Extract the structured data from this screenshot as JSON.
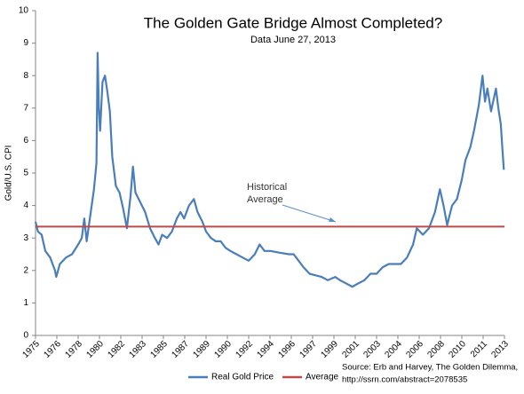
{
  "chart_data": {
    "type": "line",
    "title": "The Golden Gate Bridge Almost Completed?",
    "subtitle": "Data June 27, 2013",
    "y_label": "Gold/U.S. CPI",
    "annotation": [
      "Historical",
      "Average"
    ],
    "source": [
      "Source: Erb and Harvey,  The Golden Dilemma,",
      "http://ssrn.com/abstract=2078535"
    ],
    "xlim": [
      1975,
      2013.5
    ],
    "xticks": [
      {
        "value": 1975,
        "label": "1975"
      },
      {
        "value": 1976.75,
        "label": "1976"
      },
      {
        "value": 1978.5,
        "label": "1978"
      },
      {
        "value": 1980.25,
        "label": "1980"
      },
      {
        "value": 1982,
        "label": "1982"
      },
      {
        "value": 1983.75,
        "label": "1983"
      },
      {
        "value": 1985.5,
        "label": "1985"
      },
      {
        "value": 1987.25,
        "label": "1987"
      },
      {
        "value": 1989,
        "label": "1989"
      },
      {
        "value": 1990.75,
        "label": "1990"
      },
      {
        "value": 1992.5,
        "label": "1992"
      },
      {
        "value": 1994.25,
        "label": "1994"
      },
      {
        "value": 1996,
        "label": "1996"
      },
      {
        "value": 1997.75,
        "label": "1997"
      },
      {
        "value": 1999.5,
        "label": "1999"
      },
      {
        "value": 2001.25,
        "label": "2001"
      },
      {
        "value": 2003,
        "label": "2003"
      },
      {
        "value": 2004.75,
        "label": "2004"
      },
      {
        "value": 2006.5,
        "label": "2006"
      },
      {
        "value": 2008.25,
        "label": "2008"
      },
      {
        "value": 2010,
        "label": "2010"
      },
      {
        "value": 2011.75,
        "label": "2011"
      },
      {
        "value": 2013.5,
        "label": "2013"
      }
    ],
    "ylim": [
      0,
      10
    ],
    "yticks": [
      0,
      1,
      2,
      3,
      4,
      5,
      6,
      7,
      8,
      9,
      10
    ],
    "grid": false,
    "legend": "bottom",
    "series": [
      {
        "name": "Real Gold Price",
        "color": "#4a7ebb",
        "x": [
          1975.0,
          1975.2,
          1975.5,
          1975.8,
          1976.2,
          1976.6,
          1976.7,
          1977.0,
          1977.5,
          1978.0,
          1978.5,
          1978.8,
          1979.0,
          1979.2,
          1979.5,
          1979.8,
          1980.0,
          1980.1,
          1980.2,
          1980.3,
          1980.5,
          1980.7,
          1980.9,
          1981.1,
          1981.3,
          1981.6,
          1981.9,
          1982.2,
          1982.5,
          1982.8,
          1983.0,
          1983.2,
          1983.6,
          1984.0,
          1984.4,
          1984.8,
          1985.1,
          1985.4,
          1985.8,
          1986.2,
          1986.6,
          1986.9,
          1987.2,
          1987.6,
          1988.0,
          1988.3,
          1988.7,
          1989.0,
          1989.4,
          1989.8,
          1990.2,
          1990.6,
          1991.0,
          1991.5,
          1992.0,
          1992.5,
          1993.0,
          1993.4,
          1993.8,
          1994.3,
          1995.0,
          1995.8,
          1996.2,
          1996.6,
          1997.0,
          1997.5,
          1998.0,
          1998.5,
          1999.0,
          1999.6,
          2000.0,
          2000.5,
          2001.0,
          2001.5,
          2002.0,
          2002.5,
          2003.0,
          2003.5,
          2004.0,
          2004.5,
          2005.0,
          2005.5,
          2006.0,
          2006.3,
          2006.8,
          2007.3,
          2007.8,
          2008.2,
          2008.5,
          2008.8,
          2009.2,
          2009.6,
          2010.0,
          2010.3,
          2010.7,
          2011.0,
          2011.4,
          2011.7,
          2011.9,
          2012.1,
          2012.4,
          2012.8,
          2013.0,
          2013.2,
          2013.3,
          2013.45
        ],
        "values": [
          3.5,
          3.2,
          3.1,
          2.6,
          2.4,
          2.0,
          1.8,
          2.2,
          2.4,
          2.5,
          2.8,
          3.0,
          3.6,
          2.9,
          3.7,
          4.5,
          5.3,
          8.7,
          7.0,
          6.3,
          7.8,
          8.0,
          7.5,
          6.9,
          5.5,
          4.6,
          4.4,
          3.9,
          3.3,
          4.3,
          5.2,
          4.4,
          4.1,
          3.8,
          3.3,
          3.0,
          2.8,
          3.1,
          3.0,
          3.2,
          3.6,
          3.8,
          3.6,
          4.0,
          4.2,
          3.8,
          3.5,
          3.2,
          3.0,
          2.9,
          2.9,
          2.7,
          2.6,
          2.5,
          2.4,
          2.3,
          2.5,
          2.8,
          2.6,
          2.6,
          2.55,
          2.5,
          2.5,
          2.3,
          2.1,
          1.9,
          1.85,
          1.8,
          1.7,
          1.8,
          1.7,
          1.6,
          1.5,
          1.6,
          1.7,
          1.9,
          1.9,
          2.1,
          2.2,
          2.2,
          2.2,
          2.4,
          2.8,
          3.3,
          3.1,
          3.3,
          3.8,
          4.5,
          4.0,
          3.4,
          4.0,
          4.2,
          4.8,
          5.4,
          5.8,
          6.3,
          7.1,
          8.0,
          7.2,
          7.6,
          6.9,
          7.6,
          7.0,
          6.5,
          5.9,
          5.1
        ]
      }
    ],
    "average": {
      "name": "Average",
      "color": "#be4b48",
      "value": 3.35
    }
  }
}
